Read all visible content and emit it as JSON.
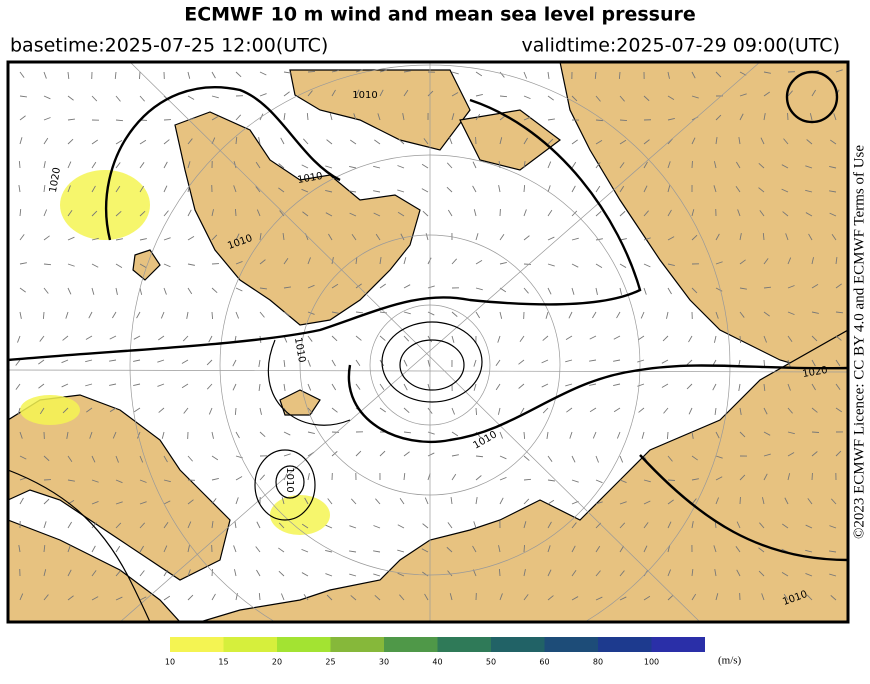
{
  "header": {
    "title": "ECMWF 10 m wind and mean sea level pressure",
    "basetime": "basetime:2025-07-25 12:00(UTC)",
    "validtime": "validtime:2025-07-29 09:00(UTC)"
  },
  "license": "©2023 ECMWF Licence: CC BY 4.0 and ECMWF Terms of Use",
  "map": {
    "isobar_labels": [
      "1010",
      "1010",
      "1010",
      "1010",
      "1010",
      "1010",
      "1010",
      "1020",
      "1020"
    ]
  },
  "colorbar": {
    "ticks": [
      10,
      15,
      20,
      25,
      30,
      40,
      50,
      60,
      80,
      100
    ],
    "colors": [
      "#f4f452",
      "#d6ef3c",
      "#a3e332",
      "#86b83a",
      "#4f9848",
      "#2f7a58",
      "#216266",
      "#1d4c78",
      "#1d3a8e",
      "#2a2fa8"
    ],
    "unit": "(m/s)"
  }
}
